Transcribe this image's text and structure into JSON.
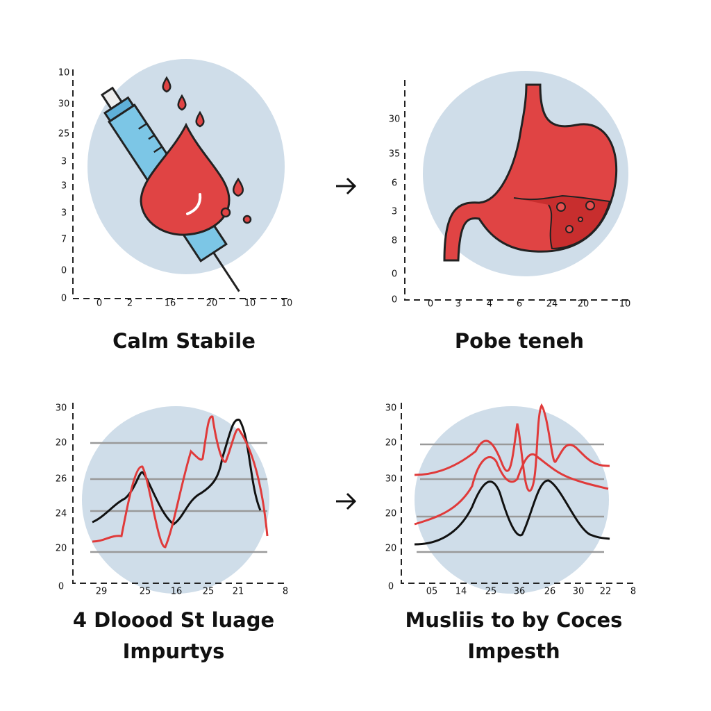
{
  "panels": [
    {
      "y_labels": [
        "10",
        "30",
        "25",
        "3",
        "3",
        "3",
        "7",
        "0",
        "0"
      ],
      "x_labels": [
        "0",
        "2",
        "16",
        "20",
        "10",
        "10"
      ],
      "caption": [
        "Calm Stabile"
      ]
    },
    {
      "y_labels": [
        "30",
        "35",
        "6",
        "3",
        "8",
        "0",
        "0"
      ],
      "x_labels": [
        "0",
        "3",
        "4",
        "6",
        "24",
        "20",
        "10"
      ],
      "caption": [
        "Pobe teneh"
      ]
    },
    {
      "y_labels": [
        "30",
        "20",
        "26",
        "24",
        "20",
        "0"
      ],
      "x_labels": [
        "29",
        "25",
        "16",
        "25",
        "21",
        "8"
      ],
      "caption": [
        "4 Dloood St luage",
        "Impurtys"
      ]
    },
    {
      "y_labels": [
        "30",
        "20",
        "30",
        "20",
        "20",
        "0"
      ],
      "x_labels": [
        "05",
        "14",
        "25",
        "36",
        "26",
        "30",
        "22",
        "8"
      ],
      "caption": [
        "Musliis to by Coces",
        "Impesth"
      ]
    }
  ]
}
